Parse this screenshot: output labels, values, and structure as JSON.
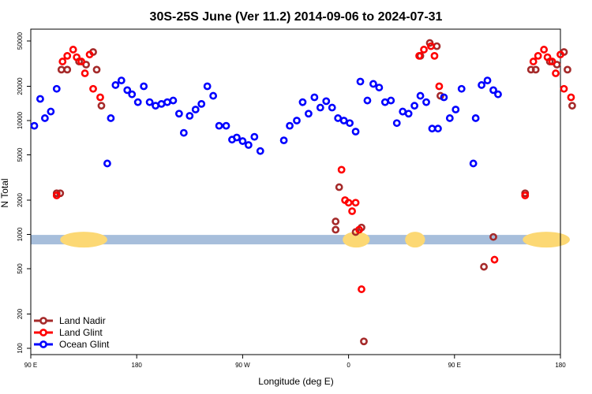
{
  "chart_data": {
    "type": "scatter",
    "title": "30S-25S June (Ver 11.2)   2014-09-06 to 2024-07-31",
    "xlabel": "Longitude (deg E)",
    "ylabel": "N Total",
    "y_scale": "log",
    "ylim": [
      90,
      70000
    ],
    "x_ticks": [
      {
        "value": 90,
        "label": "90 E"
      },
      {
        "value": 180,
        "label": "180"
      },
      {
        "value": 270,
        "label": "90 W"
      },
      {
        "value": 360,
        "label": "0"
      },
      {
        "value": 450,
        "label": "90 E"
      },
      {
        "value": 540,
        "label": "180"
      }
    ],
    "y_ticks": [
      100,
      200,
      500,
      1000,
      2000,
      5000,
      10000,
      20000,
      50000
    ],
    "legend_position": "bottom-left",
    "band": {
      "level": 900,
      "color": "#a7bedb",
      "highlight_color": "#fcd874",
      "highlights": [
        [
          115,
          155
        ],
        [
          355,
          378
        ],
        [
          408,
          425
        ],
        [
          508,
          548
        ]
      ]
    },
    "series": [
      {
        "name": "Land Nadir",
        "color": "#a52a2a",
        "points": [
          [
            115,
            2300
          ],
          [
            116,
            28000
          ],
          [
            121,
            28000
          ],
          [
            131,
            33000
          ],
          [
            137,
            31000
          ],
          [
            143,
            40000
          ],
          [
            146,
            28000
          ],
          [
            150,
            13500
          ],
          [
            112,
            2300
          ],
          [
            349,
            1300
          ],
          [
            349,
            1100
          ],
          [
            352,
            2600
          ],
          [
            366,
            1050
          ],
          [
            371,
            1150
          ],
          [
            373,
            115
          ],
          [
            421,
            37000
          ],
          [
            429,
            48000
          ],
          [
            435,
            45000
          ],
          [
            438,
            16500
          ],
          [
            483,
            950
          ],
          [
            475,
            520
          ],
          [
            510,
            2300
          ],
          [
            515,
            28000
          ],
          [
            519,
            28000
          ],
          [
            531,
            33000
          ],
          [
            537,
            31000
          ],
          [
            543,
            40000
          ],
          [
            546,
            28000
          ],
          [
            550,
            13500
          ]
        ]
      },
      {
        "name": "Land Glint",
        "color": "#ff0000",
        "points": [
          [
            112,
            2200
          ],
          [
            117,
            33000
          ],
          [
            121,
            37000
          ],
          [
            126,
            42000
          ],
          [
            129,
            36000
          ],
          [
            133,
            33000
          ],
          [
            136,
            26000
          ],
          [
            140,
            38000
          ],
          [
            143,
            19000
          ],
          [
            149,
            16000
          ],
          [
            354,
            3700
          ],
          [
            357,
            2000
          ],
          [
            360,
            1900
          ],
          [
            363,
            1600
          ],
          [
            366,
            1900
          ],
          [
            369,
            1100
          ],
          [
            371,
            330
          ],
          [
            420,
            37000
          ],
          [
            424,
            42000
          ],
          [
            430,
            45000
          ],
          [
            433,
            37000
          ],
          [
            437,
            20000
          ],
          [
            484,
            600
          ],
          [
            510,
            2200
          ],
          [
            517,
            33000
          ],
          [
            521,
            37000
          ],
          [
            526,
            42000
          ],
          [
            529,
            36000
          ],
          [
            533,
            33000
          ],
          [
            536,
            26000
          ],
          [
            540,
            38000
          ],
          [
            543,
            19000
          ],
          [
            549,
            16000
          ]
        ]
      },
      {
        "name": "Ocean Glint",
        "color": "#0000ff",
        "points": [
          [
            93,
            9000
          ],
          [
            98,
            15500
          ],
          [
            102,
            10500
          ],
          [
            107,
            12000
          ],
          [
            112,
            19000
          ],
          [
            155,
            4200
          ],
          [
            158,
            10500
          ],
          [
            162,
            20500
          ],
          [
            167,
            22500
          ],
          [
            172,
            18500
          ],
          [
            176,
            17000
          ],
          [
            181,
            14500
          ],
          [
            186,
            20000
          ],
          [
            191,
            14500
          ],
          [
            196,
            13500
          ],
          [
            201,
            14000
          ],
          [
            206,
            14500
          ],
          [
            211,
            15000
          ],
          [
            216,
            11500
          ],
          [
            220,
            7800
          ],
          [
            225,
            11000
          ],
          [
            230,
            12500
          ],
          [
            235,
            14000
          ],
          [
            240,
            20000
          ],
          [
            245,
            16500
          ],
          [
            250,
            9000
          ],
          [
            256,
            9000
          ],
          [
            261,
            6800
          ],
          [
            265,
            7100
          ],
          [
            270,
            6600
          ],
          [
            275,
            6100
          ],
          [
            280,
            7200
          ],
          [
            285,
            5400
          ],
          [
            305,
            6700
          ],
          [
            310,
            9000
          ],
          [
            316,
            10000
          ],
          [
            321,
            14500
          ],
          [
            326,
            11500
          ],
          [
            331,
            16000
          ],
          [
            336,
            13000
          ],
          [
            341,
            14800
          ],
          [
            346,
            13000
          ],
          [
            351,
            10500
          ],
          [
            356,
            10000
          ],
          [
            361,
            9500
          ],
          [
            366,
            8000
          ],
          [
            370,
            22000
          ],
          [
            376,
            15000
          ],
          [
            381,
            21000
          ],
          [
            386,
            19500
          ],
          [
            391,
            14500
          ],
          [
            396,
            15000
          ],
          [
            401,
            9500
          ],
          [
            406,
            12000
          ],
          [
            411,
            11500
          ],
          [
            416,
            13500
          ],
          [
            421,
            16500
          ],
          [
            426,
            14500
          ],
          [
            431,
            8500
          ],
          [
            436,
            8500
          ],
          [
            441,
            16000
          ],
          [
            446,
            10500
          ],
          [
            451,
            12500
          ],
          [
            456,
            19000
          ],
          [
            466,
            4200
          ],
          [
            468,
            10500
          ],
          [
            473,
            20500
          ],
          [
            478,
            22500
          ],
          [
            483,
            18500
          ],
          [
            487,
            17000
          ]
        ]
      }
    ]
  }
}
